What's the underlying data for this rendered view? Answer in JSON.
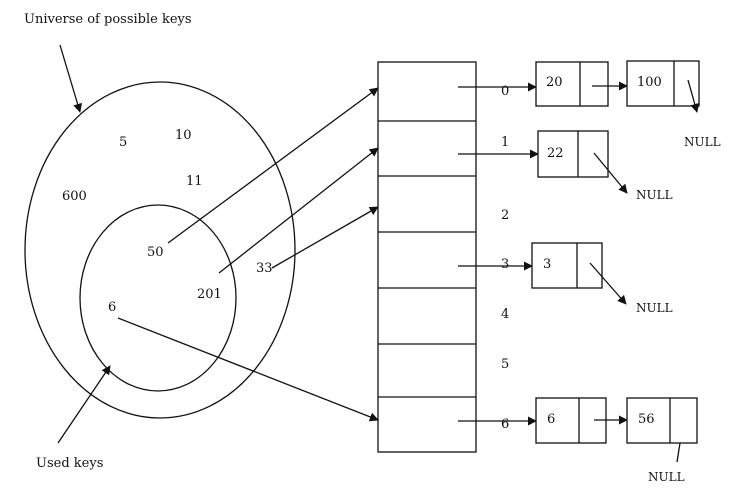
{
  "labels": {
    "universe": "Universe of possible keys",
    "used": "Used keys"
  },
  "universe_keys": [
    "5",
    "10",
    "11",
    "600",
    "33"
  ],
  "used_keys": [
    "50",
    "201",
    "6"
  ],
  "slot_indices": [
    "0",
    "1",
    "2",
    "3",
    "4",
    "5",
    "6"
  ],
  "chains": {
    "slot0": [
      "20",
      "100"
    ],
    "slot1": [
      "22"
    ],
    "slot3": [
      "3"
    ],
    "slot6": [
      "6",
      "56"
    ]
  },
  "null_label": "NULL"
}
